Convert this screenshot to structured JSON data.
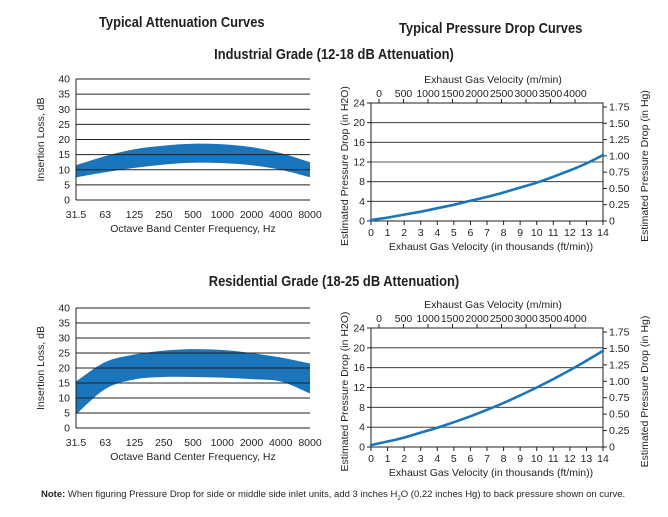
{
  "headings": {
    "attenuation": "Typical Attenuation Curves",
    "pressure": "Typical Pressure Drop Curves",
    "industrial": "Industrial Grade (12-18 dB Attenuation)",
    "residential": "Residential Grade (18-25 dB Attenuation)"
  },
  "note": {
    "label": "Note:",
    "pre": "When figuring Pressure Drop for side or middle side inlet units, add 3 inches H",
    "sub": "2",
    "post": "O (0.22 inches Hg) to back pressure shown on curve."
  },
  "colors": {
    "band": "#1a75bb",
    "axis": "#231f20"
  },
  "chart_data": [
    {
      "id": "industrial_attenuation",
      "type": "area",
      "xlabel": "Octave Band Center Frequency, Hz",
      "ylabel": "Insertion Loss, dB",
      "categories": [
        "31.5",
        "63",
        "125",
        "250",
        "500",
        "1000",
        "2000",
        "4000",
        "8000"
      ],
      "yticks": [
        "0",
        "5",
        "10",
        "15",
        "20",
        "25",
        "30",
        "35",
        "40"
      ],
      "ylim": [
        0,
        40
      ],
      "grid": "horizontal",
      "band": {
        "upper": [
          11.5,
          14.5,
          16.8,
          18.0,
          18.6,
          18.4,
          17.5,
          15.5,
          12.5
        ],
        "lower": [
          7.5,
          9.2,
          10.6,
          11.7,
          12.3,
          12.2,
          11.5,
          10.0,
          7.5
        ]
      }
    },
    {
      "id": "industrial_pressure",
      "type": "line",
      "xlabel": "Exhaust Gas Velocity (in thousands (ft/min))",
      "ylabel": "Estimated Pressure Drop (in H2O)",
      "top_xlabel": "Exhaust Gas Velocity (m/min)",
      "right_ylabel": "Estimated Pressure Drop (in Hg)",
      "xticks": [
        "0",
        "1",
        "2",
        "3",
        "4",
        "5",
        "6",
        "7",
        "8",
        "9",
        "10",
        "11",
        "12",
        "13",
        "14"
      ],
      "yticks": [
        "0",
        "4",
        "8",
        "12",
        "16",
        "20",
        "24"
      ],
      "top_xticks": [
        "0",
        "500",
        "1000",
        "1500",
        "2000",
        "2500",
        "3000",
        "3500",
        "4000"
      ],
      "right_yticks": [
        "0",
        "0.25",
        "0.50",
        "0.75",
        "1.00",
        "1.25",
        "1.50",
        "1.75"
      ],
      "xlim": [
        0,
        14
      ],
      "ylim": [
        0,
        24
      ],
      "x": [
        0,
        1,
        2,
        3,
        4,
        5,
        6,
        7,
        8,
        9,
        10,
        11,
        12,
        13,
        14
      ],
      "y": [
        0.2,
        0.7,
        1.3,
        1.9,
        2.6,
        3.3,
        4.1,
        4.9,
        5.8,
        6.8,
        7.8,
        9.0,
        10.3,
        11.7,
        13.4
      ]
    },
    {
      "id": "residential_attenuation",
      "type": "area",
      "xlabel": "Octave Band Center Frequency, Hz",
      "ylabel": "Insertion Loss, dB",
      "categories": [
        "31.5",
        "63",
        "125",
        "250",
        "500",
        "1000",
        "2000",
        "4000",
        "8000"
      ],
      "yticks": [
        "0",
        "5",
        "10",
        "15",
        "20",
        "25",
        "30",
        "35",
        "40"
      ],
      "ylim": [
        0,
        40
      ],
      "grid": "horizontal",
      "band": {
        "upper": [
          15.5,
          22.0,
          24.5,
          25.8,
          26.3,
          26.0,
          25.0,
          23.5,
          21.5
        ],
        "lower": [
          4.5,
          13.0,
          16.2,
          17.0,
          17.0,
          16.8,
          16.3,
          15.5,
          11.5
        ]
      }
    },
    {
      "id": "residential_pressure",
      "type": "line",
      "xlabel": "Exhaust Gas Velocity (in thousands (ft/min))",
      "ylabel": "Estimated Pressure Drop (in H2O)",
      "top_xlabel": "Exhaust Gas Velocity (m/min)",
      "right_ylabel": "Estimated Pressure Drop (in Hg)",
      "xticks": [
        "0",
        "1",
        "2",
        "3",
        "4",
        "5",
        "6",
        "7",
        "8",
        "9",
        "10",
        "11",
        "12",
        "13",
        "14"
      ],
      "yticks": [
        "0",
        "4",
        "8",
        "12",
        "16",
        "20",
        "24"
      ],
      "top_xticks": [
        "0",
        "500",
        "1000",
        "1500",
        "2000",
        "2500",
        "3000",
        "3500",
        "4000"
      ],
      "right_yticks": [
        "0",
        "0.25",
        "0.50",
        "0.75",
        "1.00",
        "1.25",
        "1.50",
        "1.75"
      ],
      "xlim": [
        0,
        14
      ],
      "ylim": [
        0,
        24
      ],
      "x": [
        0,
        1,
        2,
        3,
        4,
        5,
        6,
        7,
        8,
        9,
        10,
        11,
        12,
        13,
        14
      ],
      "y": [
        0.4,
        1.1,
        1.9,
        2.9,
        3.9,
        5.0,
        6.2,
        7.5,
        8.9,
        10.4,
        12.0,
        13.7,
        15.5,
        17.4,
        19.4
      ]
    }
  ]
}
